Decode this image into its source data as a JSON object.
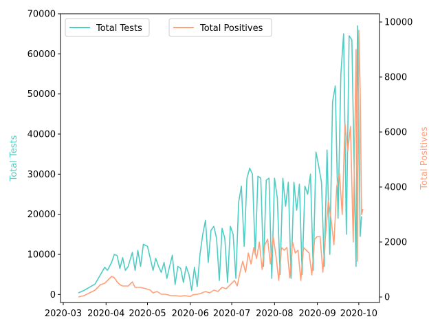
{
  "chart_data": {
    "type": "line",
    "title": "",
    "xlabel": "",
    "x_ticks": [
      "2020-03",
      "2020-04",
      "2020-05",
      "2020-06",
      "2020-07",
      "2020-08",
      "2020-09",
      "2020-10"
    ],
    "y_left": {
      "label": "Total Tests",
      "ylim": [
        -2000,
        70000
      ],
      "ticks": [
        0,
        10000,
        20000,
        30000,
        40000,
        50000,
        60000,
        70000
      ]
    },
    "y_right": {
      "label": "Total Positives",
      "ylim": [
        -200,
        10300
      ],
      "ticks": [
        0,
        2000,
        4000,
        6000,
        8000,
        10000
      ]
    },
    "legend": [
      {
        "name": "Total Tests",
        "color": "#4ecdc4",
        "axis": "left"
      },
      {
        "name": "Total Positives",
        "color": "#ffa07a",
        "axis": "right"
      }
    ],
    "series": [
      {
        "name": "Total Tests",
        "axis": "left",
        "color": "#4ecdc4",
        "points": [
          [
            "2020-03-12",
            400
          ],
          [
            "2020-03-16",
            1000
          ],
          [
            "2020-03-20",
            1800
          ],
          [
            "2020-03-24",
            2600
          ],
          [
            "2020-03-28",
            5000
          ],
          [
            "2020-03-31",
            6800
          ],
          [
            "2020-04-02",
            6000
          ],
          [
            "2020-04-05",
            8000
          ],
          [
            "2020-04-07",
            10000
          ],
          [
            "2020-04-09",
            9700
          ],
          [
            "2020-04-11",
            6500
          ],
          [
            "2020-04-13",
            9200
          ],
          [
            "2020-04-15",
            6000
          ],
          [
            "2020-04-17",
            7000
          ],
          [
            "2020-04-20",
            10500
          ],
          [
            "2020-04-22",
            6000
          ],
          [
            "2020-04-24",
            11000
          ],
          [
            "2020-04-26",
            7000
          ],
          [
            "2020-04-28",
            12500
          ],
          [
            "2020-05-01",
            12000
          ],
          [
            "2020-05-03",
            9000
          ],
          [
            "2020-05-05",
            6000
          ],
          [
            "2020-05-07",
            9000
          ],
          [
            "2020-05-09",
            7000
          ],
          [
            "2020-05-11",
            5500
          ],
          [
            "2020-05-13",
            8000
          ],
          [
            "2020-05-15",
            4000
          ],
          [
            "2020-05-17",
            7000
          ],
          [
            "2020-05-19",
            9800
          ],
          [
            "2020-05-21",
            2500
          ],
          [
            "2020-05-23",
            7000
          ],
          [
            "2020-05-25",
            6500
          ],
          [
            "2020-05-27",
            3000
          ],
          [
            "2020-05-29",
            7000
          ],
          [
            "2020-05-31",
            5000
          ],
          [
            "2020-06-02",
            1000
          ],
          [
            "2020-06-04",
            6800
          ],
          [
            "2020-06-06",
            2000
          ],
          [
            "2020-06-08",
            10000
          ],
          [
            "2020-06-10",
            15000
          ],
          [
            "2020-06-12",
            18500
          ],
          [
            "2020-06-14",
            8000
          ],
          [
            "2020-06-16",
            16000
          ],
          [
            "2020-06-18",
            17000
          ],
          [
            "2020-06-20",
            14000
          ],
          [
            "2020-06-22",
            3500
          ],
          [
            "2020-06-24",
            16500
          ],
          [
            "2020-06-26",
            14000
          ],
          [
            "2020-06-28",
            3000
          ],
          [
            "2020-06-30",
            17000
          ],
          [
            "2020-07-02",
            15000
          ],
          [
            "2020-07-04",
            4000
          ],
          [
            "2020-07-06",
            23000
          ],
          [
            "2020-07-08",
            27000
          ],
          [
            "2020-07-10",
            12000
          ],
          [
            "2020-07-12",
            29000
          ],
          [
            "2020-07-14",
            31500
          ],
          [
            "2020-07-16",
            30000
          ],
          [
            "2020-07-18",
            10000
          ],
          [
            "2020-07-20",
            29500
          ],
          [
            "2020-07-22",
            29000
          ],
          [
            "2020-07-24",
            7000
          ],
          [
            "2020-07-26",
            28500
          ],
          [
            "2020-07-28",
            29000
          ],
          [
            "2020-07-30",
            4000
          ],
          [
            "2020-08-01",
            29000
          ],
          [
            "2020-08-03",
            24000
          ],
          [
            "2020-08-05",
            5000
          ],
          [
            "2020-08-07",
            29000
          ],
          [
            "2020-08-09",
            22000
          ],
          [
            "2020-08-11",
            28000
          ],
          [
            "2020-08-13",
            4000
          ],
          [
            "2020-08-15",
            28000
          ],
          [
            "2020-08-17",
            21000
          ],
          [
            "2020-08-19",
            27500
          ],
          [
            "2020-08-21",
            5000
          ],
          [
            "2020-08-23",
            27000
          ],
          [
            "2020-08-25",
            25000
          ],
          [
            "2020-08-27",
            30000
          ],
          [
            "2020-08-29",
            6000
          ],
          [
            "2020-08-31",
            35500
          ],
          [
            "2020-09-02",
            32000
          ],
          [
            "2020-09-04",
            28000
          ],
          [
            "2020-09-06",
            7000
          ],
          [
            "2020-09-08",
            36000
          ],
          [
            "2020-09-10",
            10000
          ],
          [
            "2020-09-12",
            48000
          ],
          [
            "2020-09-14",
            52000
          ],
          [
            "2020-09-16",
            19000
          ],
          [
            "2020-09-18",
            55000
          ],
          [
            "2020-09-20",
            65000
          ],
          [
            "2020-09-22",
            15000
          ],
          [
            "2020-09-24",
            64500
          ],
          [
            "2020-09-26",
            63500
          ],
          [
            "2020-09-28",
            25000
          ],
          [
            "2020-09-29",
            7000
          ],
          [
            "2020-09-30",
            67000
          ],
          [
            "2020-10-01",
            43000
          ],
          [
            "2020-10-02",
            14500
          ],
          [
            "2020-10-03",
            19500
          ]
        ]
      },
      {
        "name": "Total Positives",
        "axis": "right",
        "color": "#ffa07a",
        "points": [
          [
            "2020-03-12",
            0
          ],
          [
            "2020-03-16",
            50
          ],
          [
            "2020-03-20",
            150
          ],
          [
            "2020-03-24",
            250
          ],
          [
            "2020-03-28",
            450
          ],
          [
            "2020-03-31",
            500
          ],
          [
            "2020-04-02",
            600
          ],
          [
            "2020-04-05",
            750
          ],
          [
            "2020-04-07",
            700
          ],
          [
            "2020-04-09",
            550
          ],
          [
            "2020-04-11",
            450
          ],
          [
            "2020-04-13",
            400
          ],
          [
            "2020-04-17",
            400
          ],
          [
            "2020-04-20",
            550
          ],
          [
            "2020-04-22",
            350
          ],
          [
            "2020-04-26",
            350
          ],
          [
            "2020-04-30",
            300
          ],
          [
            "2020-05-03",
            250
          ],
          [
            "2020-05-05",
            150
          ],
          [
            "2020-05-08",
            200
          ],
          [
            "2020-05-11",
            100
          ],
          [
            "2020-05-14",
            100
          ],
          [
            "2020-05-18",
            50
          ],
          [
            "2020-05-21",
            50
          ],
          [
            "2020-05-25",
            30
          ],
          [
            "2020-05-28",
            50
          ],
          [
            "2020-06-01",
            20
          ],
          [
            "2020-06-03",
            80
          ],
          [
            "2020-06-06",
            100
          ],
          [
            "2020-06-08",
            120
          ],
          [
            "2020-06-12",
            200
          ],
          [
            "2020-06-15",
            150
          ],
          [
            "2020-06-18",
            250
          ],
          [
            "2020-06-21",
            200
          ],
          [
            "2020-06-24",
            350
          ],
          [
            "2020-06-27",
            300
          ],
          [
            "2020-06-30",
            450
          ],
          [
            "2020-07-03",
            600
          ],
          [
            "2020-07-05",
            400
          ],
          [
            "2020-07-07",
            900
          ],
          [
            "2020-07-09",
            1300
          ],
          [
            "2020-07-11",
            900
          ],
          [
            "2020-07-13",
            1600
          ],
          [
            "2020-07-15",
            1200
          ],
          [
            "2020-07-17",
            1800
          ],
          [
            "2020-07-19",
            1400
          ],
          [
            "2020-07-21",
            2000
          ],
          [
            "2020-07-23",
            1000
          ],
          [
            "2020-07-25",
            1900
          ],
          [
            "2020-07-27",
            2100
          ],
          [
            "2020-07-29",
            1200
          ],
          [
            "2020-07-31",
            2200
          ],
          [
            "2020-08-02",
            1500
          ],
          [
            "2020-08-04",
            600
          ],
          [
            "2020-08-06",
            1800
          ],
          [
            "2020-08-08",
            1700
          ],
          [
            "2020-08-10",
            1800
          ],
          [
            "2020-08-12",
            700
          ],
          [
            "2020-08-14",
            2000
          ],
          [
            "2020-08-16",
            1600
          ],
          [
            "2020-08-18",
            1700
          ],
          [
            "2020-08-20",
            600
          ],
          [
            "2020-08-22",
            1800
          ],
          [
            "2020-08-24",
            1700
          ],
          [
            "2020-08-26",
            1600
          ],
          [
            "2020-08-28",
            800
          ],
          [
            "2020-08-30",
            2100
          ],
          [
            "2020-09-01",
            2200
          ],
          [
            "2020-09-03",
            2200
          ],
          [
            "2020-09-05",
            900
          ],
          [
            "2020-09-07",
            2300
          ],
          [
            "2020-09-09",
            3500
          ],
          [
            "2020-09-11",
            2800
          ],
          [
            "2020-09-13",
            1900
          ],
          [
            "2020-09-15",
            4000
          ],
          [
            "2020-09-17",
            4500
          ],
          [
            "2020-09-19",
            3000
          ],
          [
            "2020-09-21",
            6300
          ],
          [
            "2020-09-23",
            5300
          ],
          [
            "2020-09-25",
            6200
          ],
          [
            "2020-09-27",
            2000
          ],
          [
            "2020-09-29",
            9000
          ],
          [
            "2020-09-30",
            1300
          ],
          [
            "2020-10-01",
            9700
          ],
          [
            "2020-10-02",
            7500
          ],
          [
            "2020-10-03",
            3000
          ],
          [
            "2020-10-04",
            3200
          ]
        ]
      }
    ]
  }
}
